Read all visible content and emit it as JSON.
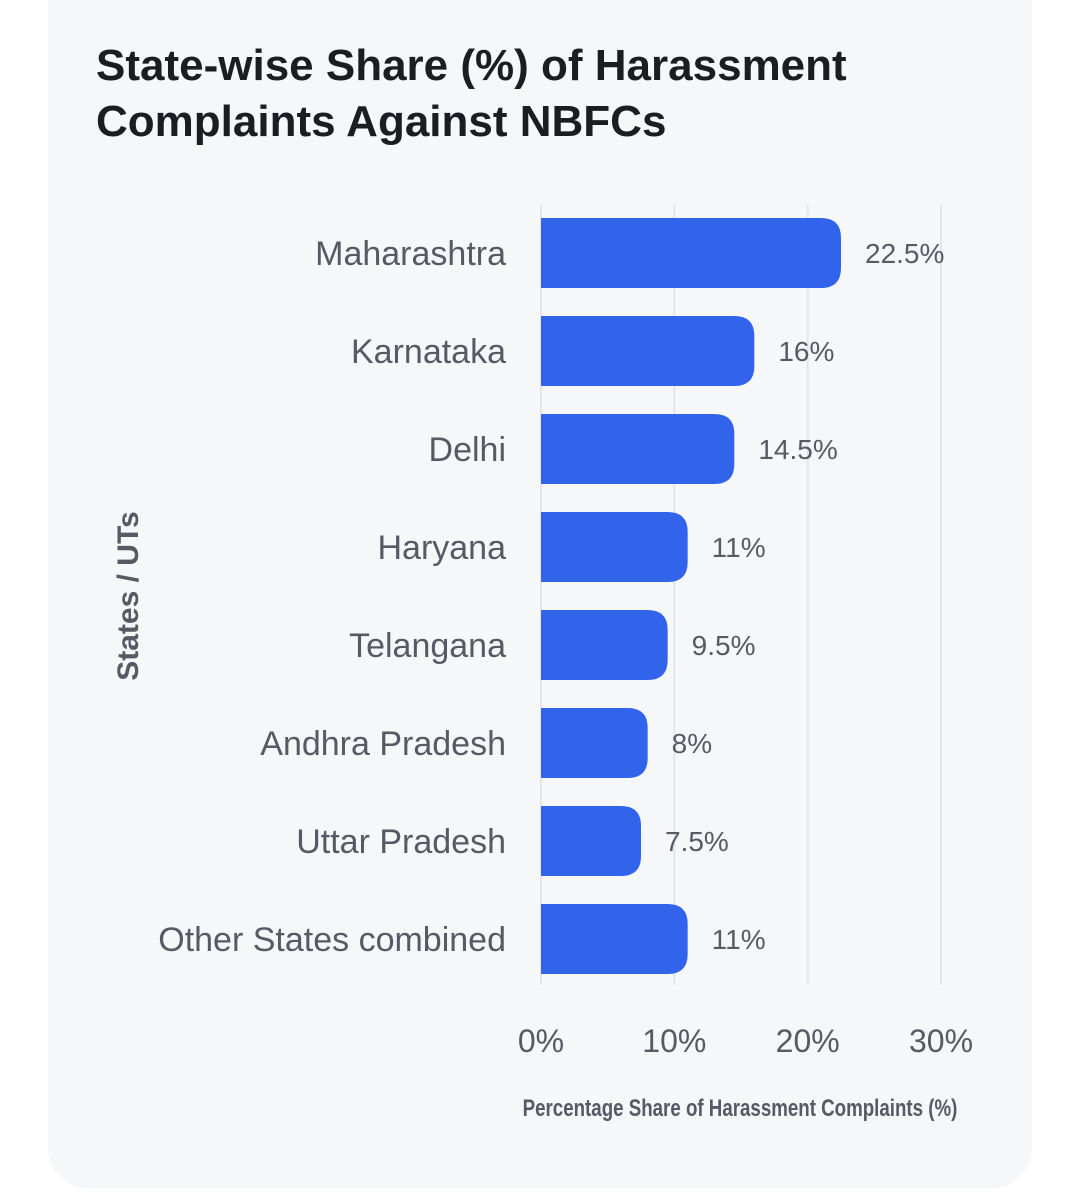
{
  "chart_data": {
    "type": "bar",
    "orientation": "horizontal",
    "title": "State-wise Share (%) of Harassment Complaints Against NBFCs",
    "xlabel": "Percentage Share of Harassment Complaints (%)",
    "ylabel": "States / UTs",
    "categories": [
      "Maharashtra",
      "Karnataka",
      "Delhi",
      "Haryana",
      "Telangana",
      "Andhra Pradesh",
      "Uttar Pradesh",
      "Other States combined"
    ],
    "values": [
      22.5,
      16,
      14.5,
      11,
      9.5,
      8,
      7.5,
      11
    ],
    "value_labels": [
      "22.5%",
      "16%",
      "14.5%",
      "11%",
      "9.5%",
      "8%",
      "7.5%",
      "11%"
    ],
    "xlim": [
      0,
      30
    ],
    "xticks": [
      0,
      10,
      20,
      30
    ],
    "xtick_labels": [
      "0%",
      "10%",
      "20%",
      "30%"
    ],
    "grid": true,
    "bar_color": "#3263eb",
    "grid_color": "#e3e5ee"
  }
}
